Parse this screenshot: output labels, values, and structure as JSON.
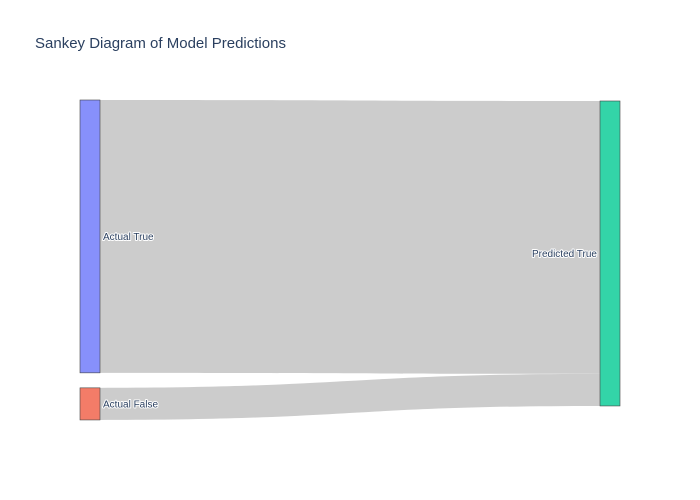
{
  "title": "Sankey Diagram of Model Predictions",
  "link_color": "#cccccc",
  "chart_data": {
    "type": "sankey",
    "nodes": [
      {
        "label": "Actual True",
        "color": "#8790fb",
        "side": "source"
      },
      {
        "label": "Actual False",
        "color": "#f37c68",
        "side": "source"
      },
      {
        "label": "Predicted True",
        "color": "#33d4a8",
        "side": "target"
      }
    ],
    "links": [
      {
        "source": 0,
        "target": 2,
        "value": 85
      },
      {
        "source": 1,
        "target": 2,
        "value": 10
      }
    ]
  }
}
